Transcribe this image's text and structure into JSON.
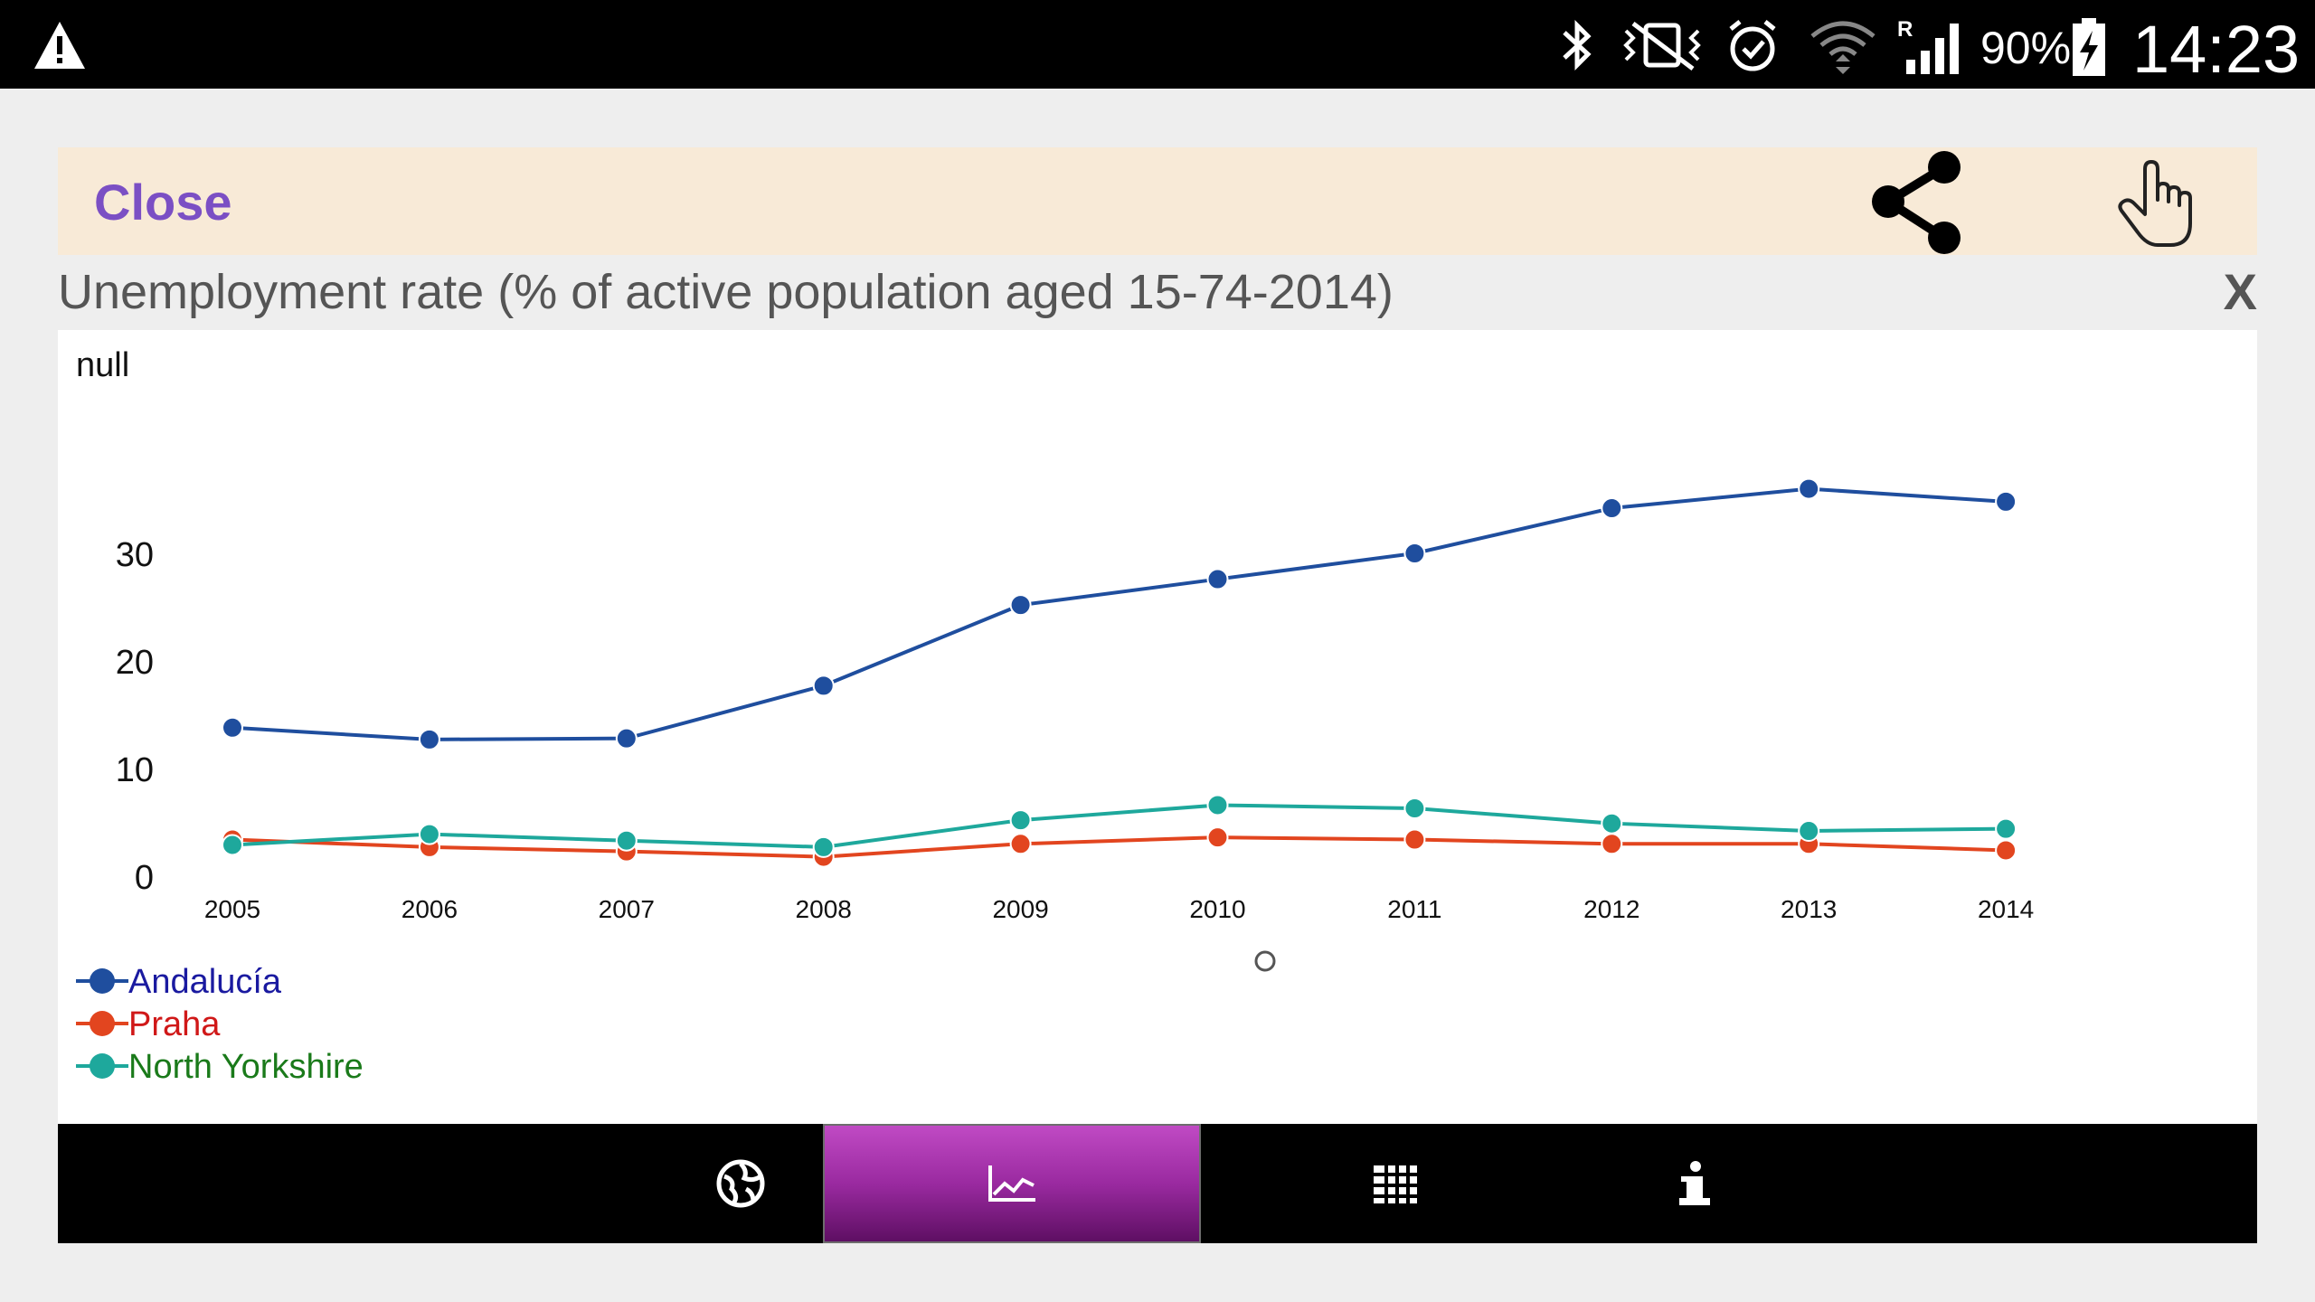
{
  "status_bar": {
    "battery": "90%",
    "time": "14:23",
    "icons": [
      "warning-icon",
      "bluetooth-icon",
      "vibrate-icon",
      "alarm-icon",
      "wifi-icon",
      "signal-icon",
      "battery-charging-icon"
    ]
  },
  "toolbar": {
    "close_label": "Close",
    "share_icon": "share-icon",
    "touch_icon": "touch-hand-icon"
  },
  "chart_header": {
    "title": "Unemployment rate (% of active population aged 15-74-2014)",
    "close_x": "X"
  },
  "chart_data": {
    "type": "line",
    "title": "Unemployment rate (% of active population aged 15-74-2014)",
    "ylabel": "null",
    "x": [
      "2005",
      "2006",
      "2007",
      "2008",
      "2009",
      "2010",
      "2011",
      "2012",
      "2013",
      "2014"
    ],
    "y_ticks": [
      0,
      10,
      20,
      30
    ],
    "ylim": [
      0,
      40
    ],
    "series": [
      {
        "name": "Andalucía",
        "color": "#1f4e9e",
        "legend_color": "#1a1aa0",
        "values": [
          13.8,
          12.7,
          12.8,
          17.7,
          25.2,
          27.6,
          30.0,
          34.2,
          36.0,
          34.8
        ]
      },
      {
        "name": "Praha",
        "color": "#e2451f",
        "legend_color": "#d01818",
        "values": [
          3.4,
          2.7,
          2.3,
          1.8,
          3.0,
          3.6,
          3.4,
          3.0,
          3.0,
          2.4
        ]
      },
      {
        "name": "North Yorkshire",
        "color": "#1ea89c",
        "legend_color": "#1a7a1a",
        "values": [
          2.9,
          3.9,
          3.3,
          2.7,
          5.2,
          6.6,
          6.3,
          4.9,
          4.2,
          4.4
        ]
      }
    ],
    "grid": false,
    "legend_position": "bottom-left"
  },
  "bottom_nav": {
    "tabs": [
      {
        "icon": "globe-icon",
        "active": false
      },
      {
        "icon": "line-chart-icon",
        "active": true
      },
      {
        "icon": "table-grid-icon",
        "active": false
      },
      {
        "icon": "info-icon",
        "active": false
      }
    ]
  }
}
